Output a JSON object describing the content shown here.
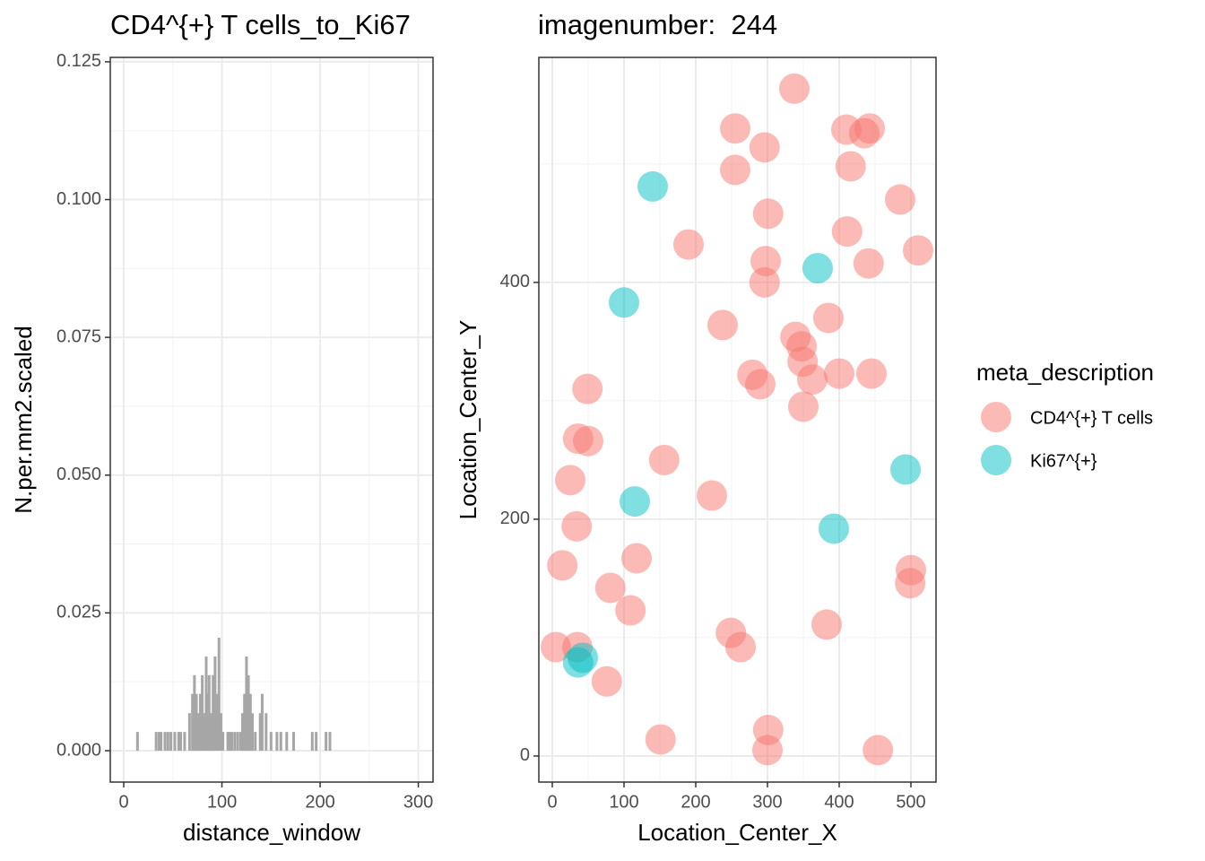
{
  "chart_data": [
    {
      "type": "bar",
      "title": "CD4^{+} T cells_to_Ki67",
      "x_label": "distance_window",
      "y_label": "N.per.mm2.scaled",
      "color": "#a6a6a6",
      "grid": true,
      "x": [
        14,
        33,
        36,
        38,
        42,
        45,
        48,
        52,
        56,
        58,
        62,
        67,
        70,
        72,
        74,
        76,
        78,
        80,
        82,
        84,
        85,
        87,
        89,
        91,
        93,
        95,
        97,
        99,
        101,
        106,
        108,
        110,
        113,
        116,
        119,
        121,
        123,
        125,
        127,
        129,
        131,
        134,
        139,
        141,
        145,
        150,
        156,
        160,
        166,
        173,
        192,
        196,
        206,
        210
      ],
      "values": [
        0.0034,
        0.0034,
        0.0034,
        0.0034,
        0.0034,
        0.0034,
        0.0034,
        0.0034,
        0.0034,
        0.0034,
        0.0034,
        0.0068,
        0.0103,
        0.0137,
        0.0103,
        0.0068,
        0.0103,
        0.0137,
        0.0068,
        0.0171,
        0.0103,
        0.0137,
        0.0068,
        0.0137,
        0.0171,
        0.0103,
        0.0205,
        0.0068,
        0.0034,
        0.0034,
        0.0034,
        0.0034,
        0.0034,
        0.0034,
        0.0034,
        0.0068,
        0.0103,
        0.0171,
        0.0137,
        0.0103,
        0.0068,
        0.0034,
        0.0068,
        0.0103,
        0.0068,
        0.0034,
        0.0034,
        0.0034,
        0.0034,
        0.0034,
        0.0034,
        0.0034,
        0.0034,
        0.0034
      ],
      "xlim": [
        -13.7,
        315
      ],
      "xticks": [
        0,
        100,
        200,
        300
      ],
      "ylim": [
        -0.0057,
        0.1258
      ],
      "yticks": [
        {
          "value": 0,
          "label": "0.000"
        },
        0.025,
        {
          "value": 0.05,
          "label": "0.050"
        },
        0.075,
        {
          "value": 0.1,
          "label": "0.100"
        },
        0.125
      ]
    },
    {
      "type": "scatter",
      "title": "imagenumber:  244",
      "x_label": "Location_Center_X",
      "y_label": "Location_Center_Y",
      "legend_title": "meta_description",
      "legend": "right",
      "grid": true,
      "xlim": [
        -18.75,
        535
      ],
      "xticks": [
        0,
        100,
        200,
        300,
        400,
        500
      ],
      "ylim": [
        -22,
        590
      ],
      "yticks": [
        0,
        200,
        400
      ],
      "series": [
        {
          "name": "CD4^{+} T cells",
          "color": "#F8766D",
          "x": [
            337.5,
            255,
            296,
            410,
            442.5,
            435,
            255,
            416,
            485,
            301,
            190,
            411,
            510,
            297.5,
            441,
            296,
            385,
            237.5,
            339,
            347.5,
            349,
            279,
            290,
            362.5,
            400,
            445,
            49,
            350,
            36,
            50,
            156,
            25,
            222.5,
            34,
            14,
            500,
            499,
            117.5,
            81,
            109,
            382.5,
            249,
            262.5,
            5,
            35,
            76,
            151,
            301,
            300,
            454
          ],
          "values": [
            563.6,
            530,
            514,
            529,
            530,
            526,
            495,
            498,
            470,
            458,
            432,
            443,
            427,
            418,
            416,
            400,
            370,
            364,
            354,
            346,
            333,
            322,
            314,
            318,
            323,
            323,
            310,
            295,
            268,
            266,
            250,
            233,
            220,
            194,
            161,
            157,
            146,
            167,
            142,
            123,
            111,
            104,
            92,
            92,
            92,
            63,
            14,
            22,
            5,
            5
          ]
        },
        {
          "name": "Ki67^{+}",
          "color": "#00BFC4",
          "x": [
            140,
            370,
            100,
            492.5,
            115,
            392.5,
            42.5,
            36
          ],
          "values": [
            481,
            412,
            383,
            242,
            215,
            192,
            83,
            79
          ]
        }
      ]
    }
  ]
}
